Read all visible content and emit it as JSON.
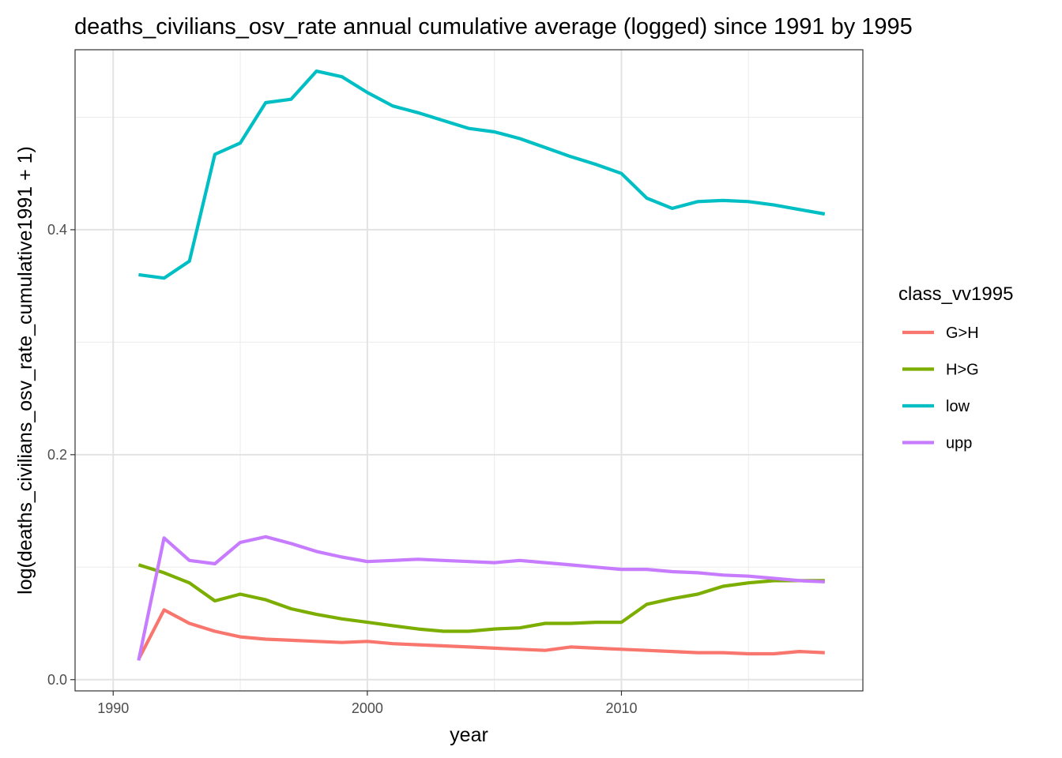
{
  "chart_data": {
    "type": "line",
    "title": "deaths_civilians_osv_rate annual cumulative average (logged) since 1991 by 1995",
    "xlabel": "year",
    "ylabel": "log(deaths_civilians_osv_rate_cumulative1991 + 1)",
    "xlim": [
      1988.5,
      2019.5
    ],
    "ylim": [
      -0.01,
      0.56
    ],
    "x_ticks": [
      1990,
      2000,
      2010
    ],
    "x_tick_labels": [
      "1990",
      "2000",
      "2010"
    ],
    "y_ticks": [
      0.0,
      0.2,
      0.4
    ],
    "y_tick_labels": [
      "0.0",
      "0.2",
      "0.4"
    ],
    "grid": true,
    "legend_title": "class_vv1995",
    "legend_position": "right",
    "x": [
      1991,
      1992,
      1993,
      1994,
      1995,
      1996,
      1997,
      1998,
      1999,
      2000,
      2001,
      2002,
      2003,
      2004,
      2005,
      2006,
      2007,
      2008,
      2009,
      2010,
      2011,
      2012,
      2013,
      2014,
      2015,
      2016,
      2017,
      2018
    ],
    "series": [
      {
        "name": "G>H",
        "color": "#F8766D",
        "values": [
          0.018,
          0.062,
          0.05,
          0.043,
          0.038,
          0.036,
          0.035,
          0.034,
          0.033,
          0.034,
          0.032,
          0.031,
          0.03,
          0.029,
          0.028,
          0.027,
          0.026,
          0.029,
          0.028,
          0.027,
          0.026,
          0.025,
          0.024,
          0.024,
          0.023,
          0.023,
          0.025,
          0.024
        ]
      },
      {
        "name": "H>G",
        "color": "#7CAE00",
        "values": [
          0.102,
          0.095,
          0.086,
          0.07,
          0.076,
          0.071,
          0.063,
          0.058,
          0.054,
          0.051,
          0.048,
          0.045,
          0.043,
          0.043,
          0.045,
          0.046,
          0.05,
          0.05,
          0.051,
          0.051,
          0.067,
          0.072,
          0.076,
          0.083,
          0.086,
          0.088,
          0.088,
          0.088
        ]
      },
      {
        "name": "low",
        "color": "#00BFC4",
        "values": [
          0.36,
          0.357,
          0.372,
          0.467,
          0.477,
          0.513,
          0.516,
          0.541,
          0.536,
          0.522,
          0.51,
          0.504,
          0.497,
          0.49,
          0.487,
          0.481,
          0.473,
          0.465,
          0.458,
          0.45,
          0.428,
          0.419,
          0.425,
          0.426,
          0.425,
          0.422,
          0.418,
          0.414
        ]
      },
      {
        "name": "upp",
        "color": "#C77CFF",
        "values": [
          0.017,
          0.126,
          0.106,
          0.103,
          0.122,
          0.127,
          0.121,
          0.114,
          0.109,
          0.105,
          0.106,
          0.107,
          0.106,
          0.105,
          0.104,
          0.106,
          0.104,
          0.102,
          0.1,
          0.098,
          0.098,
          0.096,
          0.095,
          0.093,
          0.092,
          0.09,
          0.088,
          0.087
        ]
      }
    ]
  }
}
